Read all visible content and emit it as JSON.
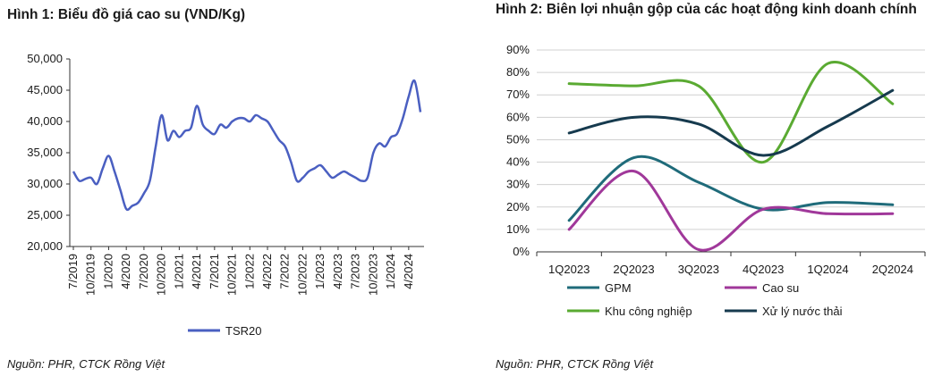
{
  "chart_data": [
    {
      "type": "line",
      "title": "Hình 1: Biểu đồ giá cao su (VND/Kg)",
      "ylim": [
        20000,
        50000
      ],
      "y_ticks": [
        "20,000",
        "25,000",
        "30,000",
        "35,000",
        "40,000",
        "45,000",
        "50,000"
      ],
      "x_ticks": [
        "7/2019",
        "10/2019",
        "1/2020",
        "4/2020",
        "7/2020",
        "10/2020",
        "1/2021",
        "4/2021",
        "7/2021",
        "10/2021",
        "1/2022",
        "4/2022",
        "7/2022",
        "10/2022",
        "1/2023",
        "4/2023",
        "7/2023",
        "10/2023",
        "1/2024",
        "4/2024"
      ],
      "grid": false,
      "legend_position": "bottom",
      "series": [
        {
          "name": "TSR20",
          "color": "#4a5fc1",
          "x": [
            "7/2019",
            "8/2019",
            "9/2019",
            "10/2019",
            "11/2019",
            "12/2019",
            "1/2020",
            "2/2020",
            "3/2020",
            "4/2020",
            "5/2020",
            "6/2020",
            "7/2020",
            "8/2020",
            "9/2020",
            "10/2020",
            "11/2020",
            "12/2020",
            "1/2021",
            "2/2021",
            "3/2021",
            "4/2021",
            "5/2021",
            "6/2021",
            "7/2021",
            "8/2021",
            "9/2021",
            "10/2021",
            "11/2021",
            "12/2021",
            "1/2022",
            "2/2022",
            "3/2022",
            "4/2022",
            "5/2022",
            "6/2022",
            "7/2022",
            "8/2022",
            "9/2022",
            "10/2022",
            "11/2022",
            "12/2022",
            "1/2023",
            "2/2023",
            "3/2023",
            "4/2023",
            "5/2023",
            "6/2023",
            "7/2023",
            "8/2023",
            "9/2023",
            "10/2023",
            "11/2023",
            "12/2023",
            "1/2024",
            "2/2024",
            "3/2024",
            "4/2024",
            "5/2024",
            "6/2024"
          ],
          "values": [
            32000,
            30500,
            30800,
            31000,
            30000,
            32500,
            34500,
            32000,
            29000,
            26000,
            26500,
            27000,
            28500,
            30500,
            36000,
            41000,
            37000,
            38500,
            37500,
            38500,
            39000,
            42500,
            39500,
            38500,
            38000,
            39500,
            39000,
            40000,
            40500,
            40500,
            40000,
            41000,
            40500,
            40000,
            38500,
            37000,
            36000,
            33500,
            30500,
            31000,
            32000,
            32500,
            33000,
            32000,
            31000,
            31500,
            32000,
            31500,
            31000,
            30500,
            31000,
            35000,
            36500,
            36000,
            37500,
            38000,
            40500,
            44000,
            46500,
            41500
          ]
        }
      ]
    },
    {
      "type": "line",
      "title": "Hình 2: Biên lợi nhuận gộp của các hoạt động kinh doanh chính",
      "categories": [
        "1Q2023",
        "2Q2023",
        "3Q2023",
        "4Q2023",
        "1Q2024",
        "2Q2024"
      ],
      "ylim": [
        0,
        90
      ],
      "y_ticks": [
        "0%",
        "10%",
        "20%",
        "30%",
        "40%",
        "50%",
        "60%",
        "70%",
        "80%",
        "90%"
      ],
      "grid": true,
      "legend_position": "bottom",
      "series": [
        {
          "name": "GPM",
          "color": "#1f6b7a",
          "values": [
            14,
            42,
            31,
            19,
            22,
            21
          ]
        },
        {
          "name": "Cao su",
          "color": "#a0389a",
          "values": [
            10,
            36,
            1,
            19,
            17,
            17
          ]
        },
        {
          "name": "Khu công nghiệp",
          "color": "#5aaa32",
          "values": [
            75,
            74,
            74,
            40,
            84,
            66
          ]
        },
        {
          "name": "Xử lý nước thải",
          "color": "#163a4e",
          "values": [
            53,
            60,
            57,
            43,
            56,
            72
          ]
        }
      ]
    }
  ],
  "source1": "Nguồn: PHR, CTCK Rồng Việt",
  "source2": "Nguồn: PHR, CTCK Rồng Việt"
}
